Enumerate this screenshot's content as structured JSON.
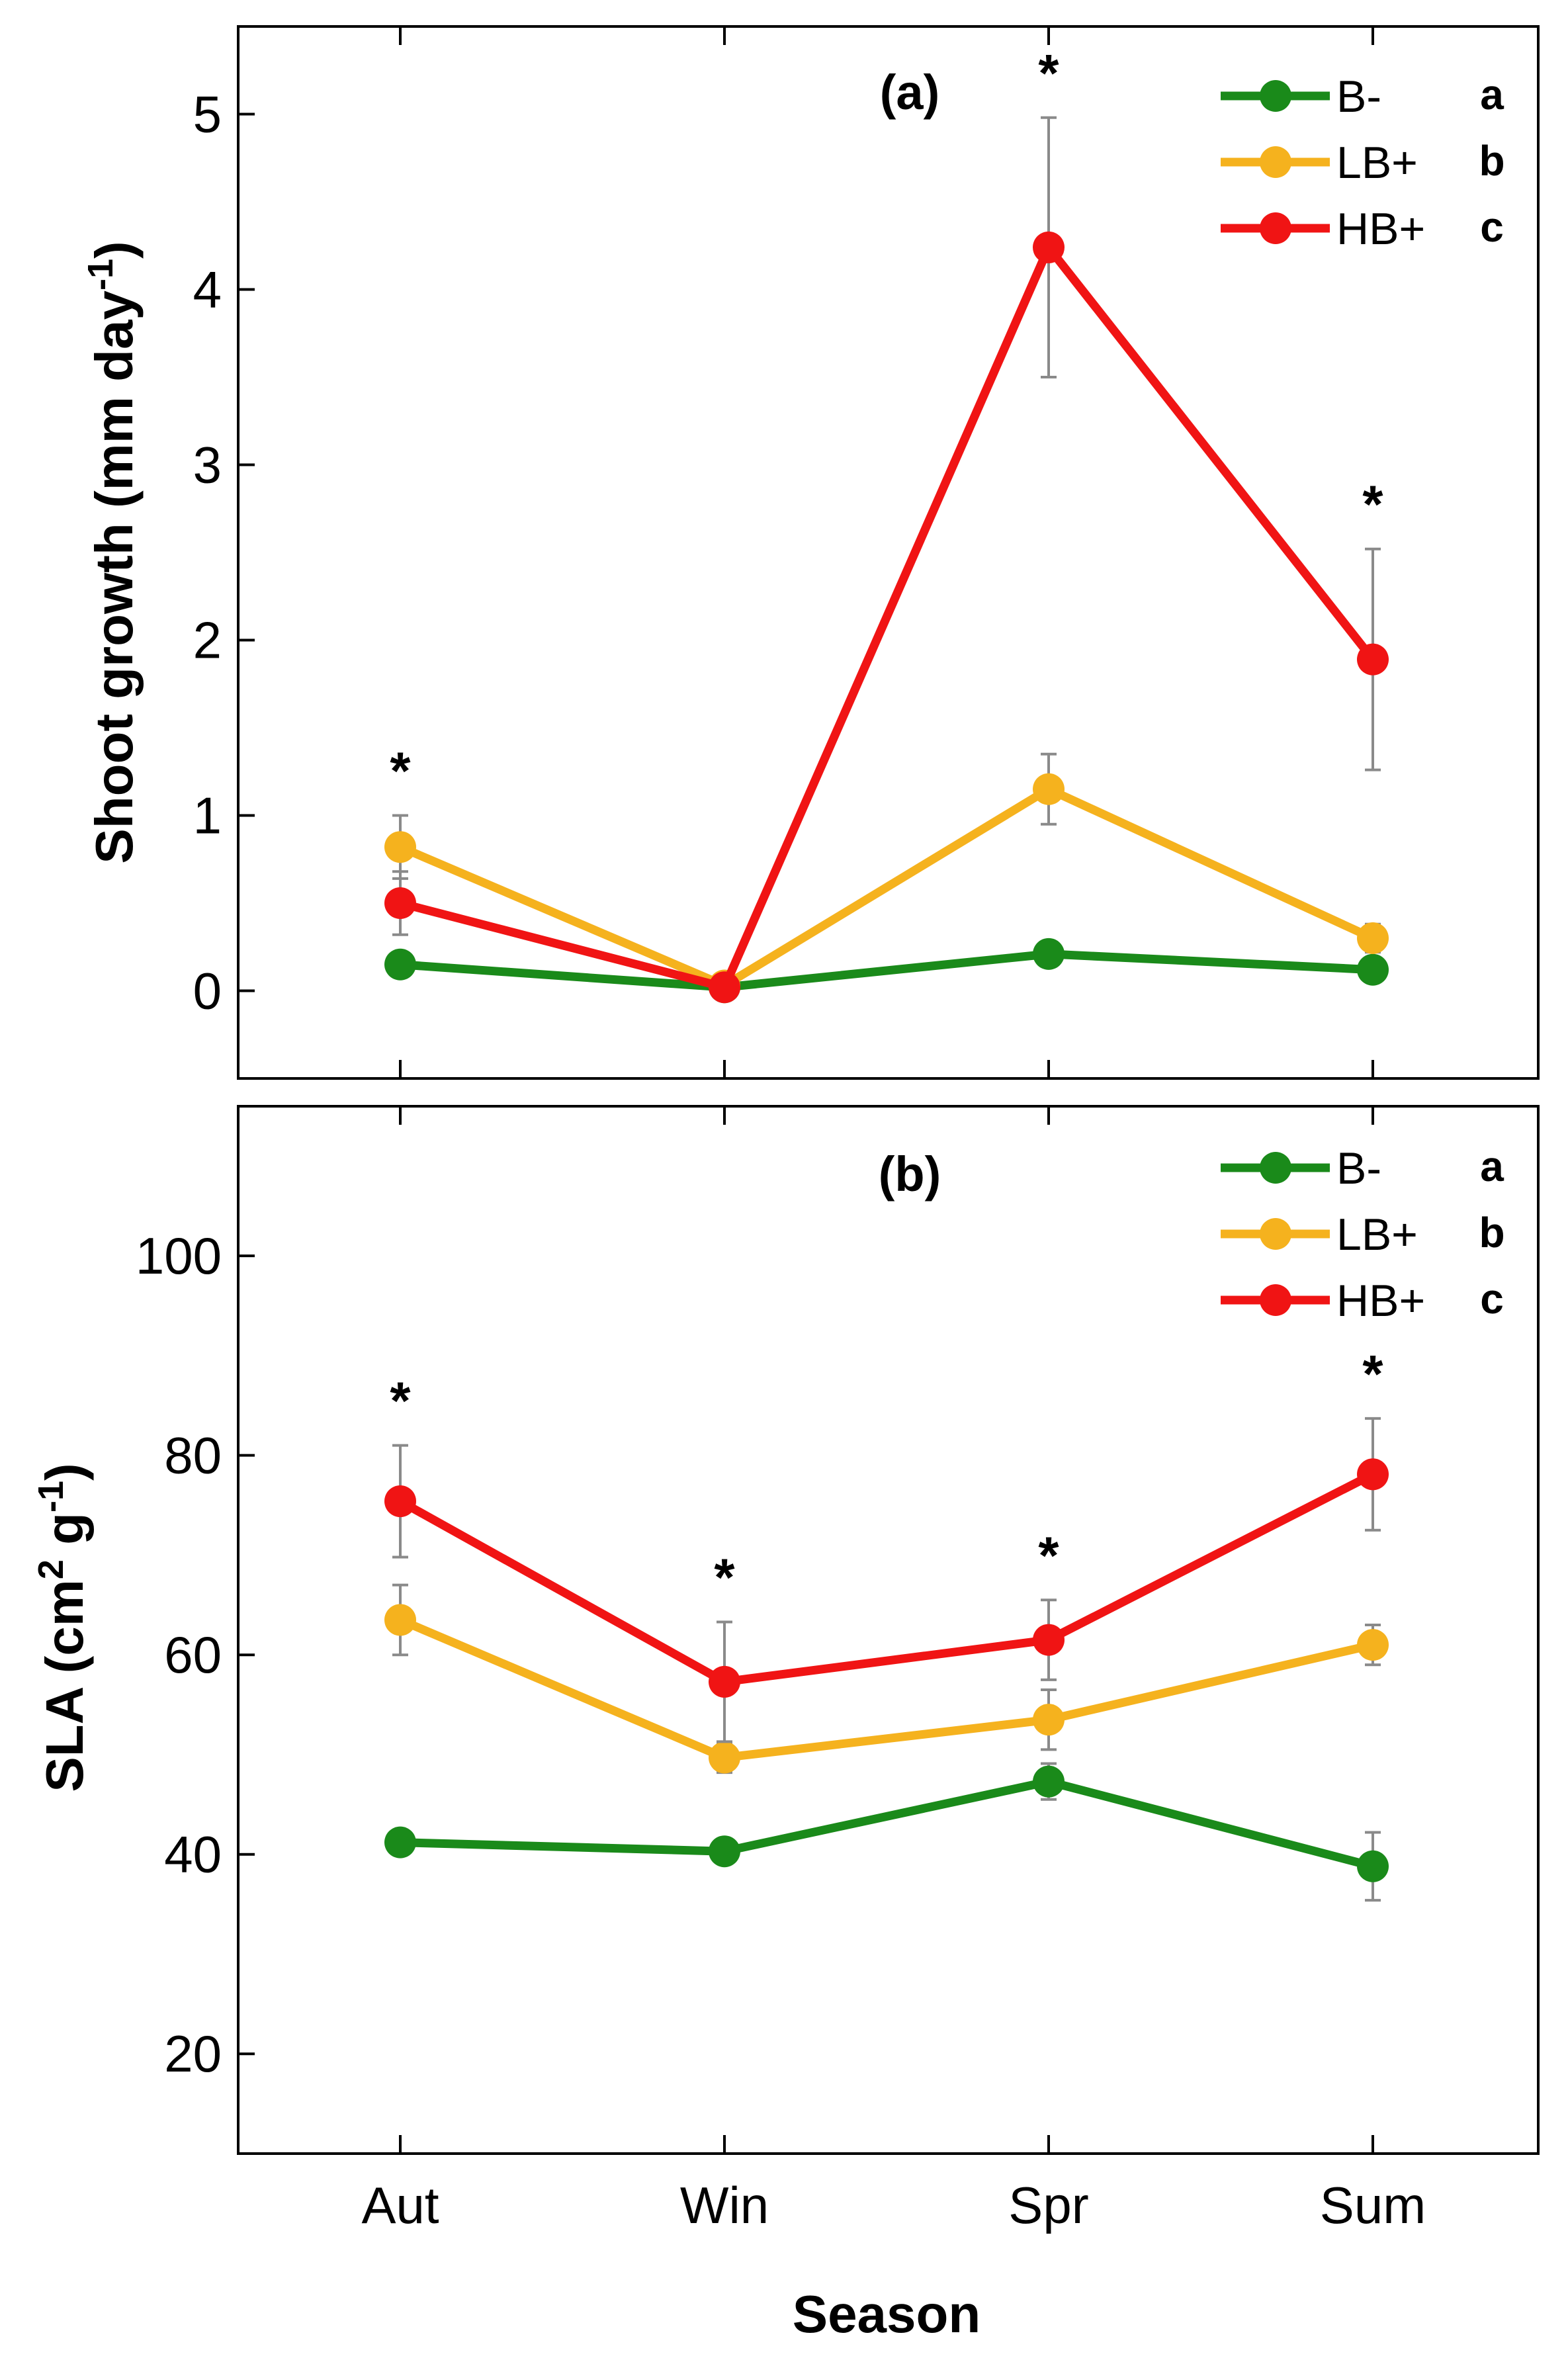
{
  "figure": {
    "xlabel": "Season"
  },
  "legend_entries": [
    {
      "name": "B-",
      "color": "#1a8a1a",
      "letter": "a"
    },
    {
      "name": "LB+",
      "color": "#f5b21e",
      "letter": "b"
    },
    {
      "name": "HB+",
      "color": "#f01414",
      "letter": "c"
    }
  ],
  "chart_data": [
    {
      "type": "line",
      "panel_label": "(a)",
      "ylabel": "Shoot growth (mm day",
      "ylabel_sup": "-1",
      "ylabel_end": ")",
      "categories": [
        "Aut",
        "Win",
        "Spr",
        "Sum"
      ],
      "ylim": [
        -0.5,
        5.5
      ],
      "yticks": [
        "0",
        "1",
        "2",
        "3",
        "4",
        "5"
      ],
      "significance": [
        "*",
        "",
        "*",
        "*"
      ],
      "series": [
        {
          "name": "B-",
          "values": [
            0.15,
            0.02,
            0.21,
            0.12
          ],
          "err": [
            0.04,
            0.02,
            0.05,
            0.04
          ]
        },
        {
          "name": "LB+",
          "values": [
            0.82,
            0.03,
            1.15,
            0.3
          ],
          "err": [
            0.18,
            0.02,
            0.2,
            0.08
          ]
        },
        {
          "name": "HB+",
          "values": [
            0.5,
            0.02,
            4.24,
            1.89
          ],
          "err": [
            0.18,
            0.02,
            0.74,
            0.63
          ]
        }
      ]
    },
    {
      "type": "line",
      "panel_label": "(b)",
      "ylabel": "SLA (cm",
      "ylabel_sup": "2",
      "ylabel_mid": " g",
      "ylabel_sup2": "-1",
      "ylabel_end": ")",
      "categories": [
        "Aut",
        "Win",
        "Spr",
        "Sum"
      ],
      "ylim": [
        10,
        115
      ],
      "yticks": [
        "20",
        "40",
        "60",
        "80",
        "100"
      ],
      "significance": [
        "*",
        "*",
        "*",
        "*"
      ],
      "series": [
        {
          "name": "B-",
          "values": [
            41.2,
            40.3,
            47.3,
            38.8
          ],
          "err": [
            1.0,
            0.8,
            1.8,
            3.4
          ]
        },
        {
          "name": "LB+",
          "values": [
            63.5,
            49.7,
            53.5,
            61.0
          ],
          "err": [
            3.5,
            1.5,
            3.0,
            2.0
          ]
        },
        {
          "name": "HB+",
          "values": [
            75.4,
            57.3,
            61.5,
            78.1
          ],
          "err": [
            5.6,
            6.0,
            4.0,
            5.6
          ]
        }
      ]
    }
  ]
}
